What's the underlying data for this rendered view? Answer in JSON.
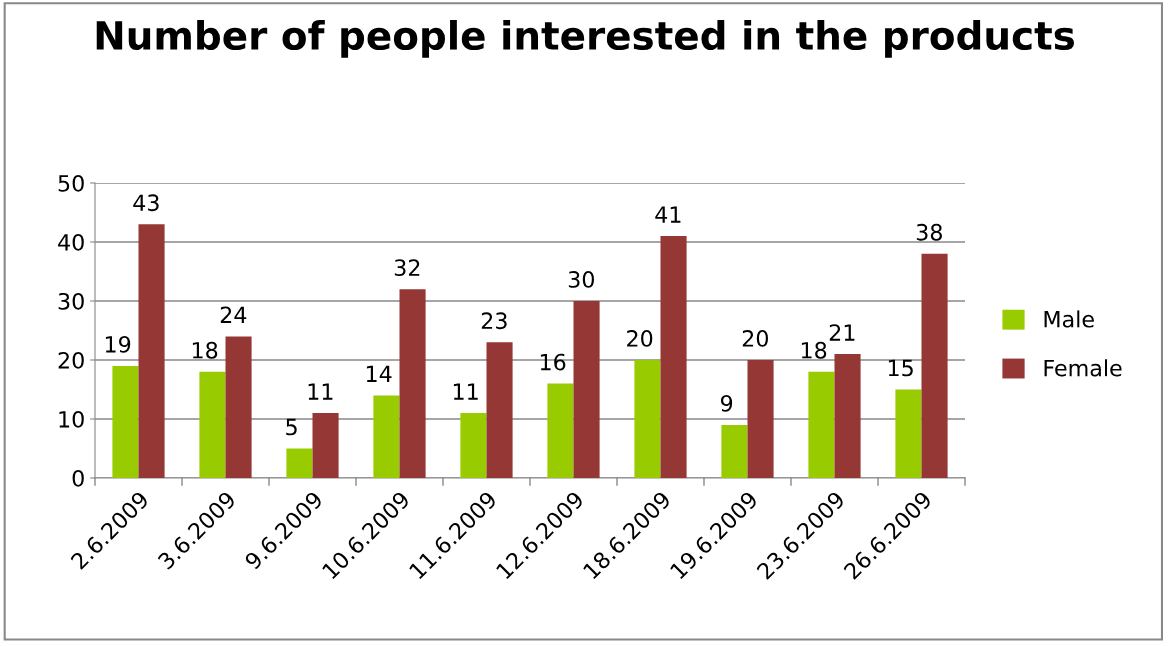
{
  "chart_data": {
    "type": "bar",
    "title": "Number of people interested in the products",
    "categories": [
      "2.6.2009",
      "3.6.2009",
      "9.6.2009",
      "10.6.2009",
      "11.6.2009",
      "12.6.2009",
      "18.6.2009",
      "19.6.2009",
      "23.6.2009",
      "26.6.2009"
    ],
    "series": [
      {
        "name": "Male",
        "color": "#99cc00",
        "values": [
          19,
          18,
          5,
          14,
          11,
          16,
          20,
          9,
          18,
          15
        ]
      },
      {
        "name": "Female",
        "color": "#953735",
        "values": [
          43,
          24,
          11,
          32,
          23,
          30,
          41,
          20,
          21,
          38
        ]
      }
    ],
    "ylim": [
      0,
      50
    ],
    "yticks": [
      0,
      10,
      20,
      30,
      40,
      50
    ],
    "grid": "y",
    "legend": "right",
    "data_labels": true
  }
}
